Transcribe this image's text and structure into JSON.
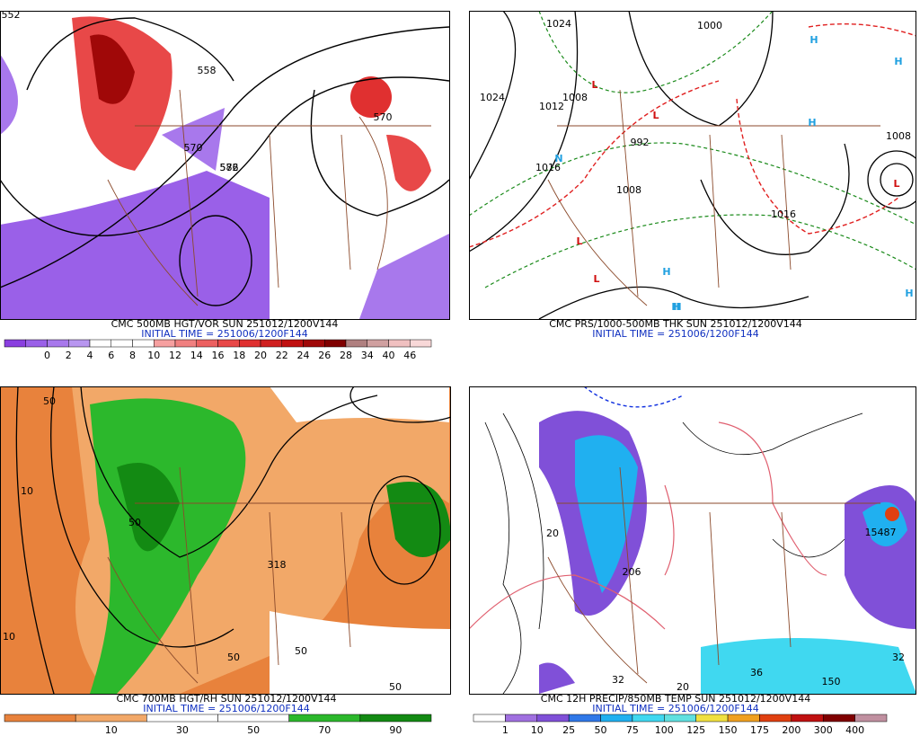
{
  "panels": [
    {
      "title": "CMC 500MB HGT/VOR SUN 251012/1200V144",
      "subtitle": "INITIAL TIME = 251006/1200F144",
      "colorbar": {
        "labels": [
          "0",
          "2",
          "4",
          "6",
          "8",
          "10",
          "12",
          "14",
          "16",
          "18",
          "20",
          "22",
          "24",
          "26",
          "28",
          "34",
          "40",
          "46"
        ],
        "colors": [
          "#8a3fe0",
          "#9a60e8",
          "#a878ec",
          "#b896f0",
          "#ffffff",
          "#ffffff",
          "#ffffff",
          "#f6a0a0",
          "#f08080",
          "#ec6060",
          "#e84848",
          "#e03030",
          "#d02020",
          "#c01010",
          "#a00808",
          "#800000",
          "#b08080",
          "#d0a0a0",
          "#f0c0c0",
          "#f8d8d8"
        ]
      },
      "map_labels": [
        "552",
        "558",
        "570",
        "576",
        "582",
        "570"
      ]
    },
    {
      "title": "CMC PRS/1000-500MB THK SUN 251012/1200V144",
      "subtitle": "INITIAL TIME = 251006/1200F144",
      "map_labels": [
        "1024",
        "1024",
        "1000",
        "1008",
        "1016",
        "1012",
        "992",
        "1008",
        "1016",
        "1008",
        "L",
        "L",
        "L",
        "L",
        "L",
        "H",
        "H",
        "H",
        "H",
        "H",
        "H",
        "H",
        "N"
      ]
    },
    {
      "title": "CMC 700MB HGT/RH SUN 251012/1200V144",
      "subtitle": "INITIAL TIME = 251006/1200F144",
      "colorbar": {
        "labels": [
          "10",
          "30",
          "50",
          "70",
          "90"
        ],
        "colors": [
          "#e8823c",
          "#f2a868",
          "#ffffff",
          "#ffffff",
          "#2cb82c",
          "#138a13"
        ]
      },
      "map_labels": [
        "50",
        "50",
        "10",
        "50",
        "10",
        "50",
        "50",
        "318"
      ]
    },
    {
      "title": "CMC 12H PRECIP/850MB TEMP SUN 251012/1200V144",
      "subtitle": "INITIAL TIME = 251006/1200F144",
      "colorbar": {
        "labels": [
          "1",
          "10",
          "25",
          "50",
          "75",
          "100",
          "125",
          "150",
          "175",
          "200",
          "300",
          "400"
        ],
        "colors": [
          "#ffffff",
          "#a070e0",
          "#8050d8",
          "#3078e8",
          "#20b0f0",
          "#40d8f0",
          "#60e0e0",
          "#f0e040",
          "#f0a020",
          "#e04010",
          "#c01010",
          "#800000",
          "#c090a0"
        ]
      },
      "map_labels": [
        "32",
        "20",
        "36",
        "32",
        "150",
        "20",
        "206",
        "15487"
      ]
    }
  ]
}
